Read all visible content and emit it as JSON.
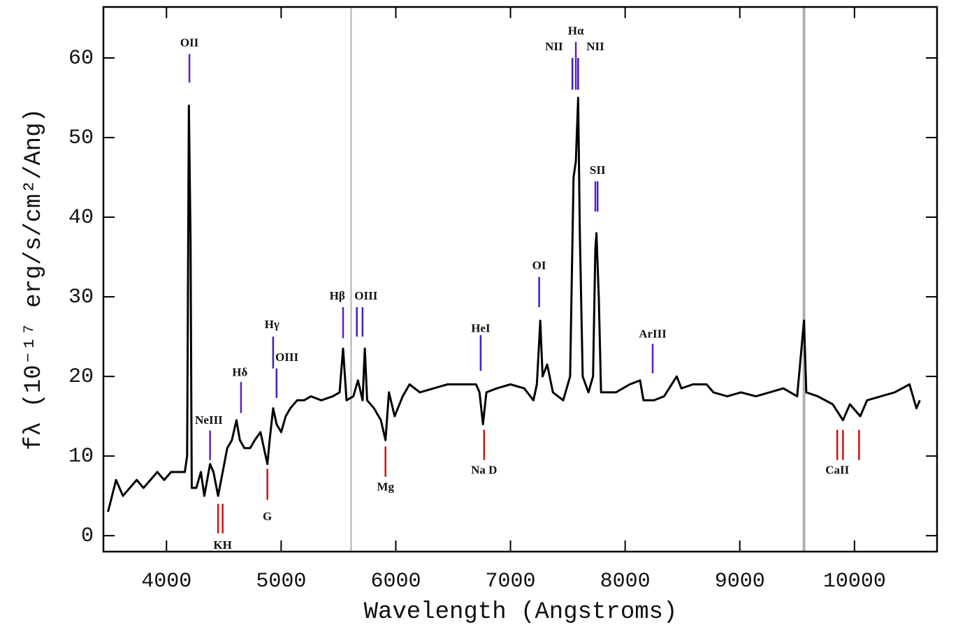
{
  "chart_data": {
    "type": "line",
    "xlabel": "Wavelength (Angstroms)",
    "ylabel": "fλ (10⁻¹⁷ erg/s/cm²/Ang)",
    "xlim": [
      3450,
      10720
    ],
    "ylim": [
      -2,
      66.4
    ],
    "xticks": [
      4000,
      5000,
      6000,
      7000,
      8000,
      9000,
      10000
    ],
    "yticks": [
      0,
      10,
      20,
      30,
      40,
      50,
      60
    ],
    "vlines": [
      5610,
      9560
    ],
    "x": [
      3490,
      3560,
      3620,
      3680,
      3740,
      3800,
      3860,
      3920,
      3980,
      4040,
      4100,
      4160,
      4180,
      4195,
      4210,
      4220,
      4260,
      4300,
      4330,
      4380,
      4410,
      4450,
      4490,
      4530,
      4570,
      4610,
      4640,
      4680,
      4730,
      4770,
      4820,
      4850,
      4880,
      4900,
      4930,
      4960,
      5000,
      5040,
      5080,
      5140,
      5200,
      5260,
      5350,
      5450,
      5510,
      5540,
      5570,
      5630,
      5670,
      5710,
      5730,
      5750,
      5810,
      5870,
      5910,
      5940,
      5990,
      6060,
      6120,
      6210,
      6330,
      6450,
      6570,
      6700,
      6730,
      6760,
      6790,
      6880,
      7000,
      7120,
      7200,
      7230,
      7260,
      7280,
      7320,
      7370,
      7460,
      7520,
      7550,
      7570,
      7590,
      7605,
      7630,
      7680,
      7720,
      7740,
      7750,
      7770,
      7790,
      7920,
      8040,
      8130,
      8160,
      8250,
      8340,
      8450,
      8490,
      8590,
      8710,
      8770,
      8890,
      9010,
      9140,
      9260,
      9380,
      9500,
      9560,
      9580,
      9680,
      9810,
      9900,
      9960,
      10050,
      10110,
      10230,
      10350,
      10480,
      10540,
      10570
    ],
    "series": [
      {
        "color": "#000000",
        "values": [
          3,
          7,
          5,
          6,
          7,
          6,
          7,
          8,
          7,
          8,
          8,
          8,
          10,
          54,
          37,
          6,
          6,
          8,
          5,
          9,
          8,
          5,
          8,
          11,
          12,
          14.5,
          12,
          11,
          11,
          12,
          13,
          11,
          9,
          12,
          16,
          14,
          13,
          15,
          16,
          17,
          17,
          17.5,
          17,
          17.5,
          18,
          23.5,
          17,
          17.5,
          19.5,
          17,
          23.5,
          17,
          16,
          14.5,
          12,
          18,
          15,
          17.5,
          19,
          18,
          18.5,
          19,
          19,
          19,
          18,
          14,
          18,
          18.5,
          19,
          18.5,
          17,
          19,
          27,
          20,
          21.5,
          18,
          17,
          20,
          45,
          47,
          55,
          38,
          20,
          18,
          20,
          36,
          38,
          30,
          18,
          18,
          19,
          19.5,
          17,
          17,
          17.5,
          20,
          18.5,
          19,
          19,
          18,
          17.5,
          18,
          17.5,
          18,
          18.5,
          17.5,
          27,
          18,
          17.5,
          16.5,
          14.5,
          16.5,
          15,
          17,
          17.5,
          18,
          19,
          16,
          17
        ]
      }
    ],
    "markers": [
      {
        "x": 4200,
        "y1": 60.5,
        "y2": 56.9,
        "color": "#5a1fc8"
      },
      {
        "x": 4380,
        "y1": 13.2,
        "y2": 9.5,
        "color": "#5a1fc8"
      },
      {
        "x": 4650,
        "y1": 19.3,
        "y2": 15.4,
        "color": "#5a1fc8"
      },
      {
        "x": 4930,
        "y1": 25,
        "y2": 21,
        "color": "#3a1fc8"
      },
      {
        "x": 4960,
        "y1": 21,
        "y2": 17.3,
        "color": "#3a1fc8"
      },
      {
        "x": 5540,
        "y1": 28.7,
        "y2": 24.8,
        "color": "#5a1fc8"
      },
      {
        "x": 5660,
        "y1": 28.7,
        "y2": 25,
        "color": "#3a1fc8"
      },
      {
        "x": 5710,
        "y1": 28.7,
        "y2": 25,
        "color": "#3a1fc8"
      },
      {
        "x": 6740,
        "y1": 25.2,
        "y2": 20.7,
        "color": "#3a1fc8"
      },
      {
        "x": 7250,
        "y1": 32.5,
        "y2": 28.7,
        "color": "#3a1fc8"
      },
      {
        "x": 7540,
        "y1": 60,
        "y2": 56,
        "color": "#3a1fc8"
      },
      {
        "x": 7570,
        "y1": 62,
        "y2": 56,
        "color": "#5a1fc8"
      },
      {
        "x": 7590,
        "y1": 60,
        "y2": 56,
        "color": "#3a1fc8"
      },
      {
        "x": 7740,
        "y1": 44.5,
        "y2": 40.7,
        "color": "#5a1fc8"
      },
      {
        "x": 7760,
        "y1": 44.5,
        "y2": 40.7,
        "color": "#5a1fc8"
      },
      {
        "x": 8240,
        "y1": 24.1,
        "y2": 20.4,
        "color": "#5a1fc8"
      },
      {
        "x": 4450,
        "y1": 4,
        "y2": 0.3,
        "color": "#d01010"
      },
      {
        "x": 4490,
        "y1": 4,
        "y2": 0.3,
        "color": "#d01010"
      },
      {
        "x": 4880,
        "y1": 8.4,
        "y2": 4.5,
        "color": "#d01010"
      },
      {
        "x": 5910,
        "y1": 11.2,
        "y2": 7.4,
        "color": "#d01010"
      },
      {
        "x": 6770,
        "y1": 13.3,
        "y2": 9.5,
        "color": "#d01010"
      },
      {
        "x": 9850,
        "y1": 13.3,
        "y2": 9.5,
        "color": "#d01010"
      },
      {
        "x": 9900,
        "y1": 13.3,
        "y2": 9.5,
        "color": "#d01010"
      },
      {
        "x": 10040,
        "y1": 13.3,
        "y2": 9.5,
        "color": "#d01010"
      }
    ],
    "labels": [
      {
        "text": "OII",
        "x": 4200,
        "y": 61.8
      },
      {
        "text": "NeIII",
        "x": 4370,
        "y": 14.4
      },
      {
        "text": "Hδ",
        "x": 4640,
        "y": 20.4
      },
      {
        "text": "Hγ",
        "x": 4920,
        "y": 26.4
      },
      {
        "text": "OIII",
        "x": 5050,
        "y": 22.3
      },
      {
        "text": "Hβ",
        "x": 5490,
        "y": 30
      },
      {
        "text": "OIII",
        "x": 5740,
        "y": 30
      },
      {
        "text": "HeI",
        "x": 6740,
        "y": 25.9
      },
      {
        "text": "OI",
        "x": 7250,
        "y": 33.8
      },
      {
        "text": "NII",
        "x": 7380,
        "y": 61.3
      },
      {
        "text": "Hα",
        "x": 7570,
        "y": 63.3
      },
      {
        "text": "NII",
        "x": 7740,
        "y": 61.3
      },
      {
        "text": "SII",
        "x": 7760,
        "y": 45.8
      },
      {
        "text": "ArIII",
        "x": 8240,
        "y": 25.2
      },
      {
        "text": "KH",
        "x": 4490,
        "y": -1.3
      },
      {
        "text": "G",
        "x": 4880,
        "y": 2.3
      },
      {
        "text": "Mg",
        "x": 5910,
        "y": 6
      },
      {
        "text": "Na D",
        "x": 6770,
        "y": 8.1
      },
      {
        "text": "CaII",
        "x": 9850,
        "y": 8.1
      }
    ]
  }
}
